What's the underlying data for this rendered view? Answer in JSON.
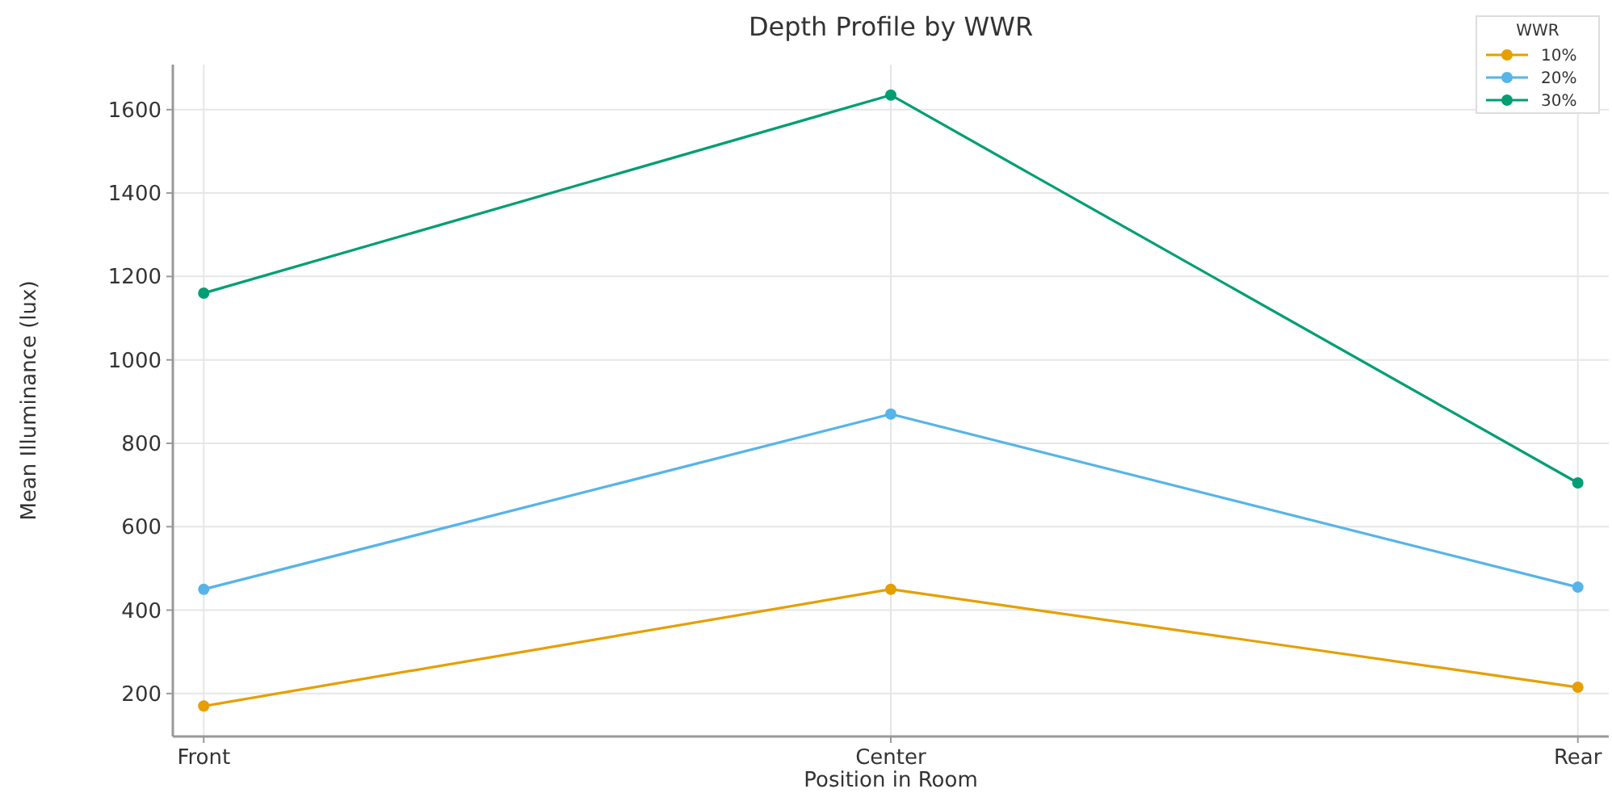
{
  "chart_data": {
    "type": "line",
    "title": "Depth Profile by WWR",
    "xlabel": "Position in Room",
    "ylabel": "Mean Illuminance (lux)",
    "legend_title": "WWR",
    "categories": [
      "Front",
      "Center",
      "Rear"
    ],
    "series": [
      {
        "name": "10%",
        "color": "#e69f00",
        "values": [
          170,
          450,
          215
        ]
      },
      {
        "name": "20%",
        "color": "#56b4e9",
        "values": [
          450,
          870,
          455
        ]
      },
      {
        "name": "30%",
        "color": "#009e73",
        "values": [
          1160,
          1635,
          705
        ]
      }
    ],
    "ylim": [
      97,
      1708
    ],
    "yticks": [
      200,
      400,
      600,
      800,
      1000,
      1200,
      1400,
      1600
    ],
    "grid": true,
    "legend": "top right",
    "marker": "circle",
    "line_style": "solid"
  }
}
